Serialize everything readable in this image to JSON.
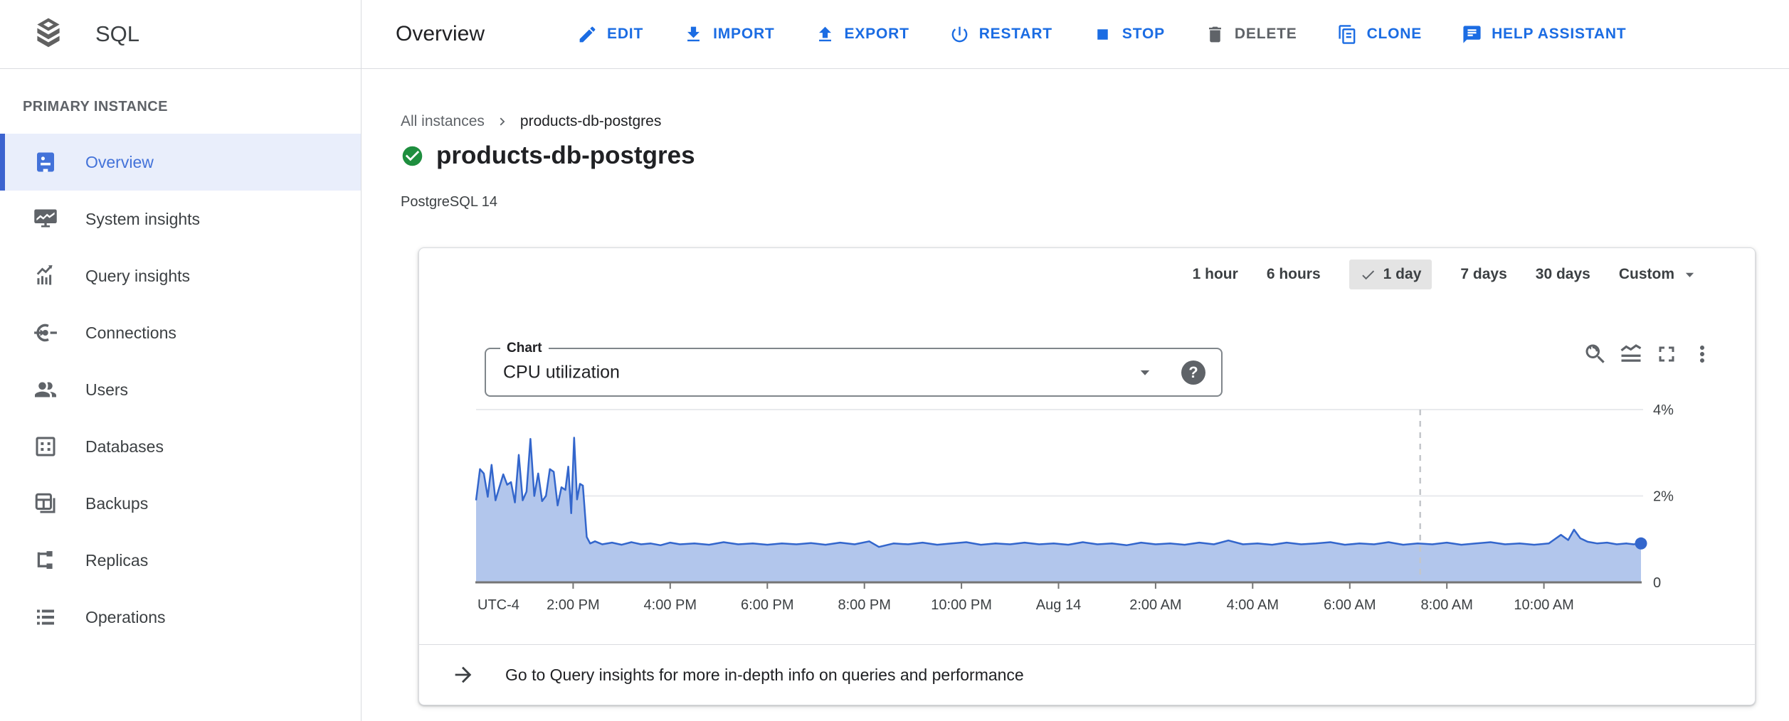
{
  "app": {
    "name": "SQL"
  },
  "header": {
    "title": "Overview",
    "actions": [
      {
        "label": "EDIT",
        "icon": "edit-icon",
        "style": "primary"
      },
      {
        "label": "IMPORT",
        "icon": "import-icon",
        "style": "primary"
      },
      {
        "label": "EXPORT",
        "icon": "export-icon",
        "style": "primary"
      },
      {
        "label": "RESTART",
        "icon": "restart-icon",
        "style": "primary"
      },
      {
        "label": "STOP",
        "icon": "stop-icon",
        "style": "primary"
      },
      {
        "label": "DELETE",
        "icon": "delete-icon",
        "style": "disabled"
      },
      {
        "label": "CLONE",
        "icon": "clone-icon",
        "style": "primary"
      },
      {
        "label": "HELP ASSISTANT",
        "icon": "help-assistant-icon",
        "style": "primary"
      }
    ]
  },
  "sidebar": {
    "section_label": "PRIMARY INSTANCE",
    "items": [
      {
        "label": "Overview",
        "icon": "overview-icon",
        "selected": true
      },
      {
        "label": "System insights",
        "icon": "system-insights-icon",
        "selected": false
      },
      {
        "label": "Query insights",
        "icon": "query-insights-icon",
        "selected": false
      },
      {
        "label": "Connections",
        "icon": "connections-icon",
        "selected": false
      },
      {
        "label": "Users",
        "icon": "users-icon",
        "selected": false
      },
      {
        "label": "Databases",
        "icon": "databases-icon",
        "selected": false
      },
      {
        "label": "Backups",
        "icon": "backups-icon",
        "selected": false
      },
      {
        "label": "Replicas",
        "icon": "replicas-icon",
        "selected": false
      },
      {
        "label": "Operations",
        "icon": "operations-icon",
        "selected": false
      }
    ]
  },
  "breadcrumb": {
    "items": [
      "All instances",
      "products-db-postgres"
    ]
  },
  "instance": {
    "name": "products-db-postgres",
    "status_icon": "check-circle-icon",
    "version": "PostgreSQL 14"
  },
  "time_range": {
    "options": [
      "1 hour",
      "6 hours",
      "1 day",
      "7 days",
      "30 days"
    ],
    "selected": "1 day",
    "custom_label": "Custom"
  },
  "chart_selector": {
    "label": "Chart",
    "value": "CPU utilization",
    "help_icon": "help-icon"
  },
  "chart_toolbar": {
    "icons": [
      "zoom-reset-icon",
      "area-chart-icon",
      "fullscreen-icon",
      "more-vert-icon"
    ]
  },
  "chart_data": {
    "type": "area",
    "title": "CPU utilization",
    "x_unit": "hours_from_window_start",
    "timezone_label": "UTC-4",
    "xlim": [
      0,
      24
    ],
    "ylim": [
      0,
      4
    ],
    "grid": true,
    "legend": false,
    "y_ticks": [
      {
        "v": 0,
        "label": "0"
      },
      {
        "v": 2,
        "label": "2%"
      },
      {
        "v": 4,
        "label": "4%"
      }
    ],
    "x_ticks": [
      {
        "t": 2,
        "label": "2:00 PM"
      },
      {
        "t": 4,
        "label": "4:00 PM"
      },
      {
        "t": 6,
        "label": "6:00 PM"
      },
      {
        "t": 8,
        "label": "8:00 PM"
      },
      {
        "t": 10,
        "label": "10:00 PM"
      },
      {
        "t": 12,
        "label": "Aug 14"
      },
      {
        "t": 14,
        "label": "2:00 AM"
      },
      {
        "t": 16,
        "label": "4:00 AM"
      },
      {
        "t": 18,
        "label": "6:00 AM"
      },
      {
        "t": 20,
        "label": "8:00 AM"
      },
      {
        "t": 22,
        "label": "10:00 AM"
      }
    ],
    "now_marker_t": 19.45,
    "end_dot": true,
    "series": [
      {
        "name": "CPU utilization (%)",
        "points": [
          [
            0,
            1.9
          ],
          [
            0.08,
            2.62
          ],
          [
            0.16,
            2.52
          ],
          [
            0.24,
            1.98
          ],
          [
            0.32,
            2.72
          ],
          [
            0.4,
            1.9
          ],
          [
            0.48,
            2.2
          ],
          [
            0.56,
            2.5
          ],
          [
            0.64,
            2.26
          ],
          [
            0.72,
            2.32
          ],
          [
            0.8,
            1.85
          ],
          [
            0.88,
            2.95
          ],
          [
            0.96,
            1.9
          ],
          [
            1.04,
            2.1
          ],
          [
            1.12,
            3.32
          ],
          [
            1.2,
            2.0
          ],
          [
            1.28,
            2.52
          ],
          [
            1.36,
            1.88
          ],
          [
            1.44,
            2.0
          ],
          [
            1.52,
            2.62
          ],
          [
            1.6,
            2.56
          ],
          [
            1.68,
            1.78
          ],
          [
            1.76,
            2.2
          ],
          [
            1.84,
            2.14
          ],
          [
            1.9,
            2.68
          ],
          [
            1.96,
            1.6
          ],
          [
            2.02,
            3.35
          ],
          [
            2.08,
            1.92
          ],
          [
            2.14,
            2.28
          ],
          [
            2.2,
            2.24
          ],
          [
            2.28,
            1.05
          ],
          [
            2.35,
            0.9
          ],
          [
            2.45,
            0.95
          ],
          [
            2.6,
            0.88
          ],
          [
            2.8,
            0.92
          ],
          [
            3.0,
            0.87
          ],
          [
            3.2,
            0.93
          ],
          [
            3.4,
            0.88
          ],
          [
            3.6,
            0.9
          ],
          [
            3.8,
            0.86
          ],
          [
            4.0,
            0.92
          ],
          [
            4.2,
            0.88
          ],
          [
            4.5,
            0.9
          ],
          [
            4.8,
            0.87
          ],
          [
            5.1,
            0.93
          ],
          [
            5.4,
            0.88
          ],
          [
            5.7,
            0.9
          ],
          [
            6.0,
            0.87
          ],
          [
            6.3,
            0.9
          ],
          [
            6.6,
            0.88
          ],
          [
            6.9,
            0.91
          ],
          [
            7.2,
            0.87
          ],
          [
            7.5,
            0.92
          ],
          [
            7.8,
            0.88
          ],
          [
            8.1,
            0.95
          ],
          [
            8.3,
            0.82
          ],
          [
            8.6,
            0.9
          ],
          [
            8.9,
            0.88
          ],
          [
            9.2,
            0.92
          ],
          [
            9.5,
            0.87
          ],
          [
            9.8,
            0.9
          ],
          [
            10.1,
            0.93
          ],
          [
            10.4,
            0.87
          ],
          [
            10.7,
            0.9
          ],
          [
            11.0,
            0.88
          ],
          [
            11.3,
            0.92
          ],
          [
            11.6,
            0.88
          ],
          [
            11.9,
            0.9
          ],
          [
            12.2,
            0.87
          ],
          [
            12.5,
            0.93
          ],
          [
            12.8,
            0.88
          ],
          [
            13.1,
            0.9
          ],
          [
            13.4,
            0.86
          ],
          [
            13.7,
            0.92
          ],
          [
            14.0,
            0.88
          ],
          [
            14.3,
            0.9
          ],
          [
            14.6,
            0.87
          ],
          [
            14.9,
            0.92
          ],
          [
            15.2,
            0.88
          ],
          [
            15.5,
            0.97
          ],
          [
            15.8,
            0.88
          ],
          [
            16.1,
            0.9
          ],
          [
            16.4,
            0.87
          ],
          [
            16.7,
            0.92
          ],
          [
            17.0,
            0.88
          ],
          [
            17.3,
            0.9
          ],
          [
            17.6,
            0.93
          ],
          [
            17.9,
            0.87
          ],
          [
            18.2,
            0.9
          ],
          [
            18.5,
            0.88
          ],
          [
            18.8,
            0.93
          ],
          [
            19.1,
            0.87
          ],
          [
            19.4,
            0.9
          ],
          [
            19.7,
            0.88
          ],
          [
            20.0,
            0.92
          ],
          [
            20.3,
            0.87
          ],
          [
            20.6,
            0.9
          ],
          [
            20.9,
            0.93
          ],
          [
            21.2,
            0.88
          ],
          [
            21.5,
            0.9
          ],
          [
            21.8,
            0.87
          ],
          [
            22.1,
            0.9
          ],
          [
            22.35,
            1.1
          ],
          [
            22.5,
            0.98
          ],
          [
            22.62,
            1.22
          ],
          [
            22.75,
            1.02
          ],
          [
            22.9,
            0.94
          ],
          [
            23.1,
            0.9
          ],
          [
            23.3,
            0.92
          ],
          [
            23.5,
            0.88
          ],
          [
            23.7,
            0.9
          ],
          [
            23.85,
            0.88
          ],
          [
            24,
            0.9
          ]
        ]
      }
    ]
  },
  "footer_link": {
    "icon": "arrow-right-icon",
    "text": "Go to Query insights for more in-depth info on queries and performance"
  },
  "colors": {
    "primary_blue": "#1b6ce3",
    "sidebar_selected_blue": "#4372d9",
    "sidebar_selected_bg": "#e9eefb",
    "status_green": "#1e8e3e",
    "chart_line": "#3366cc",
    "chart_fill": "#b2c6ec",
    "axis_text": "#3c4043",
    "text_dark": "#202124",
    "text_gray": "#5f6368",
    "border": "#dadce0"
  }
}
